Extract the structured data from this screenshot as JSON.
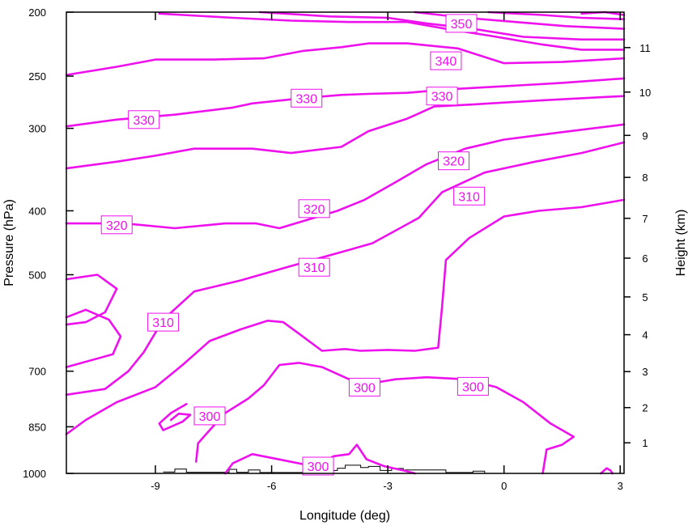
{
  "chart_data": {
    "type": "line",
    "xlabel": "Longitude (deg)",
    "ylabel": "Pressure (hPa)",
    "ylabel_right": "Height (km)",
    "xlim": [
      -11.3,
      3.1
    ],
    "ylim": [
      1000,
      200
    ],
    "y_scale": "log",
    "x_ticks": [
      -9,
      -6,
      -3,
      0,
      3
    ],
    "x_tick_labels": [
      "-9",
      "-6",
      "-3",
      "0",
      "3"
    ],
    "y_ticks": [
      200,
      250,
      300,
      400,
      500,
      700,
      850,
      1000
    ],
    "y_tick_labels": [
      "200",
      "250",
      "300",
      "400",
      "500",
      "700",
      "850",
      "1000"
    ],
    "right_ticks_km": [
      1,
      2,
      3,
      4,
      5,
      6,
      7,
      8,
      9,
      10,
      11
    ],
    "right_tick_labels": [
      "1",
      "2",
      "3",
      "4",
      "5",
      "6",
      "7",
      "8",
      "9",
      "10",
      "11"
    ],
    "grid": false,
    "contour_color": "#ee11ee",
    "terrain_color": "#000000",
    "series": [
      {
        "level": 300,
        "points": [
          [
            -8.2,
            785
          ],
          [
            -8.6,
            810
          ],
          [
            -8.9,
            840
          ],
          [
            -8.8,
            860
          ],
          [
            -8.3,
            835
          ],
          [
            -8.1,
            815
          ],
          [
            -8.4,
            812
          ],
          [
            -8.6,
            830
          ]
        ]
      },
      {
        "level": 300,
        "points": [
          [
            -7.95,
            960
          ],
          [
            -7.9,
            900
          ],
          [
            -7.6,
            860
          ],
          [
            -7.2,
            810
          ],
          [
            -6.6,
            770
          ],
          [
            -6.2,
            735
          ],
          [
            -5.8,
            685
          ],
          [
            -5.3,
            680
          ],
          [
            -4.7,
            690
          ],
          [
            -4.0,
            720
          ],
          [
            -3.4,
            730
          ],
          [
            -2.8,
            720
          ],
          [
            -2.0,
            715
          ],
          [
            -1.0,
            720
          ],
          [
            -0.2,
            740
          ],
          [
            0.5,
            780
          ],
          [
            1.2,
            840
          ],
          [
            1.8,
            880
          ],
          [
            1.5,
            905
          ],
          [
            1.1,
            920
          ],
          [
            1.0,
            1000
          ]
        ]
      },
      {
        "level": 300,
        "points": [
          [
            -7.2,
            1000
          ],
          [
            -7.0,
            965
          ],
          [
            -6.5,
            935
          ],
          [
            -5.9,
            950
          ],
          [
            -5.2,
            968
          ],
          [
            -4.8,
            972
          ],
          [
            -4.4,
            942
          ],
          [
            -4.0,
            935
          ],
          [
            -3.8,
            905
          ],
          [
            -3.55,
            952
          ],
          [
            -3.1,
            975
          ],
          [
            -2.6,
            990
          ],
          [
            -2.3,
            1000
          ]
        ]
      },
      {
        "level": 300,
        "points": [
          [
            2.5,
            1000
          ],
          [
            2.65,
            982
          ],
          [
            2.75,
            990
          ],
          [
            2.8,
            1000
          ]
        ]
      },
      {
        "level": 310,
        "points": [
          [
            -11.3,
            872
          ],
          [
            -10.8,
            830
          ],
          [
            -10.0,
            780
          ],
          [
            -9.0,
            740
          ],
          [
            -8.3,
            685
          ],
          [
            -7.6,
            630
          ],
          [
            -6.8,
            605
          ],
          [
            -6.1,
            587
          ],
          [
            -5.7,
            590
          ],
          [
            -5.2,
            620
          ],
          [
            -4.7,
            652
          ],
          [
            -4.1,
            648
          ],
          [
            -3.7,
            652
          ],
          [
            -3.0,
            650
          ],
          [
            -2.3,
            652
          ],
          [
            -1.7,
            645
          ],
          [
            -1.6,
            560
          ],
          [
            -1.5,
            475
          ],
          [
            -0.9,
            440
          ],
          [
            0.0,
            408
          ],
          [
            0.9,
            400
          ],
          [
            2.0,
            395
          ],
          [
            3.1,
            385
          ]
        ]
      },
      {
        "level": 310,
        "points": [
          [
            -11.3,
            760
          ],
          [
            -10.3,
            745
          ],
          [
            -9.7,
            700
          ],
          [
            -9.3,
            655
          ],
          [
            -8.8,
            585
          ],
          [
            -8.0,
            530
          ],
          [
            -6.8,
            510
          ],
          [
            -5.5,
            485
          ],
          [
            -4.2,
            462
          ],
          [
            -3.4,
            448
          ],
          [
            -2.2,
            410
          ],
          [
            -1.6,
            375
          ],
          [
            -0.5,
            350
          ],
          [
            0.8,
            337
          ],
          [
            2.0,
            327
          ],
          [
            3.1,
            315
          ]
        ]
      },
      {
        "level": 310,
        "points": [
          [
            -11.3,
            690
          ],
          [
            -10.1,
            660
          ],
          [
            -9.9,
            620
          ],
          [
            -10.2,
            585
          ],
          [
            -10.8,
            565
          ],
          [
            -11.3,
            580
          ]
        ]
      },
      {
        "level": 320,
        "points": [
          [
            -11.3,
            508
          ],
          [
            -10.5,
            500
          ],
          [
            -10.0,
            525
          ],
          [
            -10.3,
            570
          ],
          [
            -10.8,
            590
          ],
          [
            -11.3,
            595
          ]
        ]
      },
      {
        "level": 320,
        "points": [
          [
            -11.3,
            418
          ],
          [
            -9.8,
            418
          ],
          [
            -8.5,
            425
          ],
          [
            -7.2,
            418
          ],
          [
            -6.4,
            418
          ],
          [
            -5.8,
            425
          ],
          [
            -4.3,
            400
          ],
          [
            -3.6,
            385
          ],
          [
            -2.8,
            362
          ],
          [
            -2.0,
            340
          ],
          [
            -1.0,
            322
          ],
          [
            0.0,
            312
          ],
          [
            1.5,
            304
          ],
          [
            3.1,
            296
          ]
        ]
      },
      {
        "level": 320,
        "points": [
          [
            -11.3,
            345
          ],
          [
            -10.0,
            337
          ],
          [
            -9.0,
            330
          ],
          [
            -8.0,
            322
          ],
          [
            -6.5,
            322
          ],
          [
            -5.5,
            327
          ],
          [
            -4.2,
            320
          ],
          [
            -3.5,
            303
          ],
          [
            -2.5,
            290
          ],
          [
            -1.8,
            278
          ],
          [
            -0.8,
            276
          ],
          [
            1.0,
            272
          ],
          [
            3.1,
            268
          ]
        ]
      },
      {
        "level": 330,
        "points": [
          [
            -11.3,
            298
          ],
          [
            -10.0,
            291
          ],
          [
            -8.5,
            286
          ],
          [
            -7.0,
            279
          ],
          [
            -6.5,
            275
          ],
          [
            -5.2,
            270
          ],
          [
            -4.2,
            267
          ],
          [
            -3.5,
            266
          ],
          [
            -2.5,
            265
          ],
          [
            -1.5,
            262
          ],
          [
            0.0,
            259
          ],
          [
            1.5,
            256
          ],
          [
            3.1,
            252
          ]
        ]
      },
      {
        "level": 330,
        "points": [
          [
            -11.3,
            249
          ],
          [
            -10.0,
            242
          ],
          [
            -9.0,
            236
          ],
          [
            -7.5,
            236
          ],
          [
            -6.2,
            235
          ],
          [
            -5.2,
            229
          ],
          [
            -4.2,
            226
          ],
          [
            -3.5,
            223
          ],
          [
            -2.5,
            223
          ],
          [
            -1.2,
            227
          ],
          [
            0.0,
            239
          ],
          [
            1.5,
            238
          ],
          [
            3.1,
            235
          ]
        ]
      },
      {
        "level": 340,
        "points": [
          [
            -8.9,
            201
          ],
          [
            -7.0,
            204
          ],
          [
            -5.5,
            206
          ],
          [
            -4.0,
            207
          ],
          [
            -2.5,
            207
          ],
          [
            -1.5,
            212
          ],
          [
            -0.4,
            217
          ],
          [
            1.0,
            224
          ],
          [
            2.0,
            228
          ],
          [
            3.1,
            228
          ]
        ]
      },
      {
        "level": 340,
        "points": [
          [
            -6.3,
            200
          ],
          [
            -4.5,
            203
          ],
          [
            -3.0,
            204
          ],
          [
            -2.0,
            208
          ],
          [
            -0.8,
            212
          ],
          [
            0.5,
            218
          ],
          [
            2.0,
            220
          ],
          [
            3.1,
            220
          ]
        ]
      },
      {
        "level": 350,
        "points": [
          [
            -2.3,
            200
          ],
          [
            -1.0,
            204
          ],
          [
            0.3,
            207
          ],
          [
            1.6,
            210
          ],
          [
            3.1,
            212
          ]
        ]
      },
      {
        "level": 350,
        "points": [
          [
            -0.4,
            200
          ],
          [
            1.0,
            202
          ],
          [
            2.0,
            204
          ],
          [
            3.1,
            205
          ]
        ]
      },
      {
        "level": 350,
        "points": [
          [
            2.0,
            201
          ],
          [
            2.6,
            200
          ],
          [
            3.1,
            202
          ]
        ]
      }
    ],
    "contour_labels": [
      {
        "text": "350",
        "x": -1.1,
        "p": 208
      },
      {
        "text": "340",
        "x": -1.5,
        "p": 237
      },
      {
        "text": "330",
        "x": -1.6,
        "p": 268
      },
      {
        "text": "330",
        "x": -5.1,
        "p": 270
      },
      {
        "text": "330",
        "x": -9.3,
        "p": 291
      },
      {
        "text": "320",
        "x": -1.3,
        "p": 336
      },
      {
        "text": "320",
        "x": -4.9,
        "p": 397
      },
      {
        "text": "320",
        "x": -10.0,
        "p": 420
      },
      {
        "text": "310",
        "x": -0.9,
        "p": 380
      },
      {
        "text": "310",
        "x": -4.9,
        "p": 487
      },
      {
        "text": "310",
        "x": -8.8,
        "p": 590
      },
      {
        "text": "300",
        "x": -3.6,
        "p": 740
      },
      {
        "text": "300",
        "x": -0.8,
        "p": 738
      },
      {
        "text": "300",
        "x": -7.6,
        "p": 818
      },
      {
        "text": "300",
        "x": -4.8,
        "p": 975
      }
    ],
    "terrain": [
      {
        "x0": -8.8,
        "x1": -8.5,
        "p": 995
      },
      {
        "x0": -8.5,
        "x1": -8.2,
        "p": 985
      },
      {
        "x0": -8.2,
        "x1": -7.1,
        "p": 996
      },
      {
        "x0": -7.1,
        "x1": -6.9,
        "p": 986
      },
      {
        "x0": -6.9,
        "x1": -6.6,
        "p": 996
      },
      {
        "x0": -6.6,
        "x1": -6.3,
        "p": 988
      },
      {
        "x0": -6.3,
        "x1": -4.5,
        "p": 997
      },
      {
        "x0": -4.5,
        "x1": -4.3,
        "p": 990
      },
      {
        "x0": -4.3,
        "x1": -4.1,
        "p": 982
      },
      {
        "x0": -4.1,
        "x1": -3.7,
        "p": 972
      },
      {
        "x0": -3.7,
        "x1": -3.5,
        "p": 980
      },
      {
        "x0": -3.5,
        "x1": -3.2,
        "p": 976
      },
      {
        "x0": -3.2,
        "x1": -2.9,
        "p": 990
      },
      {
        "x0": -2.9,
        "x1": -2.6,
        "p": 983
      },
      {
        "x0": -2.6,
        "x1": -1.5,
        "p": 988
      },
      {
        "x0": -1.5,
        "x1": -0.8,
        "p": 997
      },
      {
        "x0": -0.8,
        "x1": -0.5,
        "p": 992
      },
      {
        "x0": -0.5,
        "x1": 3.1,
        "p": 1000
      }
    ]
  }
}
